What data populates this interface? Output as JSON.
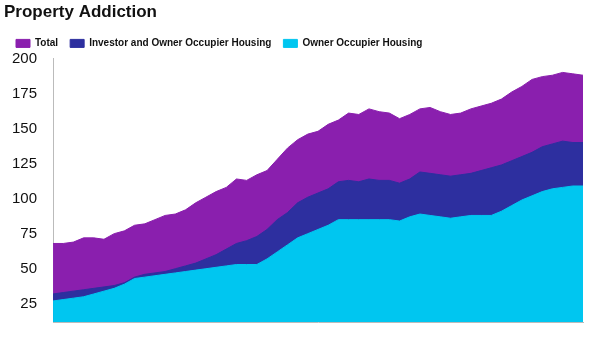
{
  "chart_data": {
    "type": "area",
    "title": "Property Addiction",
    "categories": [
      null,
      null,
      null,
      null,
      null,
      null,
      null,
      null,
      null,
      null,
      null,
      null,
      null,
      null,
      null,
      null,
      null,
      null,
      null,
      null,
      null,
      null,
      null,
      null,
      null,
      null,
      null,
      null,
      null,
      null,
      null,
      null,
      null,
      null,
      null,
      null,
      null,
      null,
      null,
      null,
      null,
      null,
      null,
      null,
      null,
      null,
      null,
      null,
      null,
      null,
      null,
      null,
      null
    ],
    "series": [
      {
        "name": "Total",
        "color": "#8a1fae",
        "values": [
          68,
          68,
          69,
          72,
          72,
          71,
          75,
          77,
          81,
          82,
          85,
          88,
          89,
          92,
          97,
          101,
          105,
          108,
          114,
          113,
          117,
          120,
          128,
          136,
          142,
          146,
          148,
          153,
          156,
          161,
          160,
          164,
          162,
          161,
          157,
          160,
          164,
          165,
          162,
          160,
          161,
          164,
          166,
          168,
          171,
          176,
          180,
          185,
          187,
          188,
          190,
          189,
          188
        ]
      },
      {
        "name": "Investor and Owner Occupier Housing",
        "color": "#2d2f9f",
        "values": [
          32,
          33,
          34,
          35,
          36,
          37,
          38,
          40,
          44,
          46,
          47,
          48,
          50,
          52,
          54,
          57,
          60,
          64,
          68,
          70,
          73,
          78,
          85,
          90,
          97,
          101,
          104,
          107,
          112,
          113,
          112,
          114,
          113,
          113,
          111,
          114,
          119,
          118,
          117,
          116,
          117,
          118,
          120,
          122,
          124,
          127,
          130,
          133,
          137,
          139,
          141,
          140,
          140
        ]
      },
      {
        "name": "Owner Occupier Housing",
        "color": "#00c6f0",
        "values": [
          27,
          28,
          29,
          30,
          32,
          34,
          36,
          39,
          43,
          44,
          45,
          46,
          47,
          48,
          49,
          50,
          51,
          52,
          53,
          53,
          53,
          57,
          62,
          67,
          72,
          75,
          78,
          81,
          85,
          85,
          85,
          85,
          85,
          85,
          84,
          87,
          89,
          88,
          87,
          86,
          87,
          88,
          88,
          88,
          91,
          95,
          99,
          102,
          105,
          107,
          108,
          109,
          109
        ]
      }
    ],
    "ylim": [
      12,
      200
    ],
    "yticks": [
      25,
      50,
      75,
      100,
      125,
      150,
      175,
      200
    ],
    "grid": false,
    "legend": "top left",
    "stacked": false,
    "tick_labels": "y"
  }
}
